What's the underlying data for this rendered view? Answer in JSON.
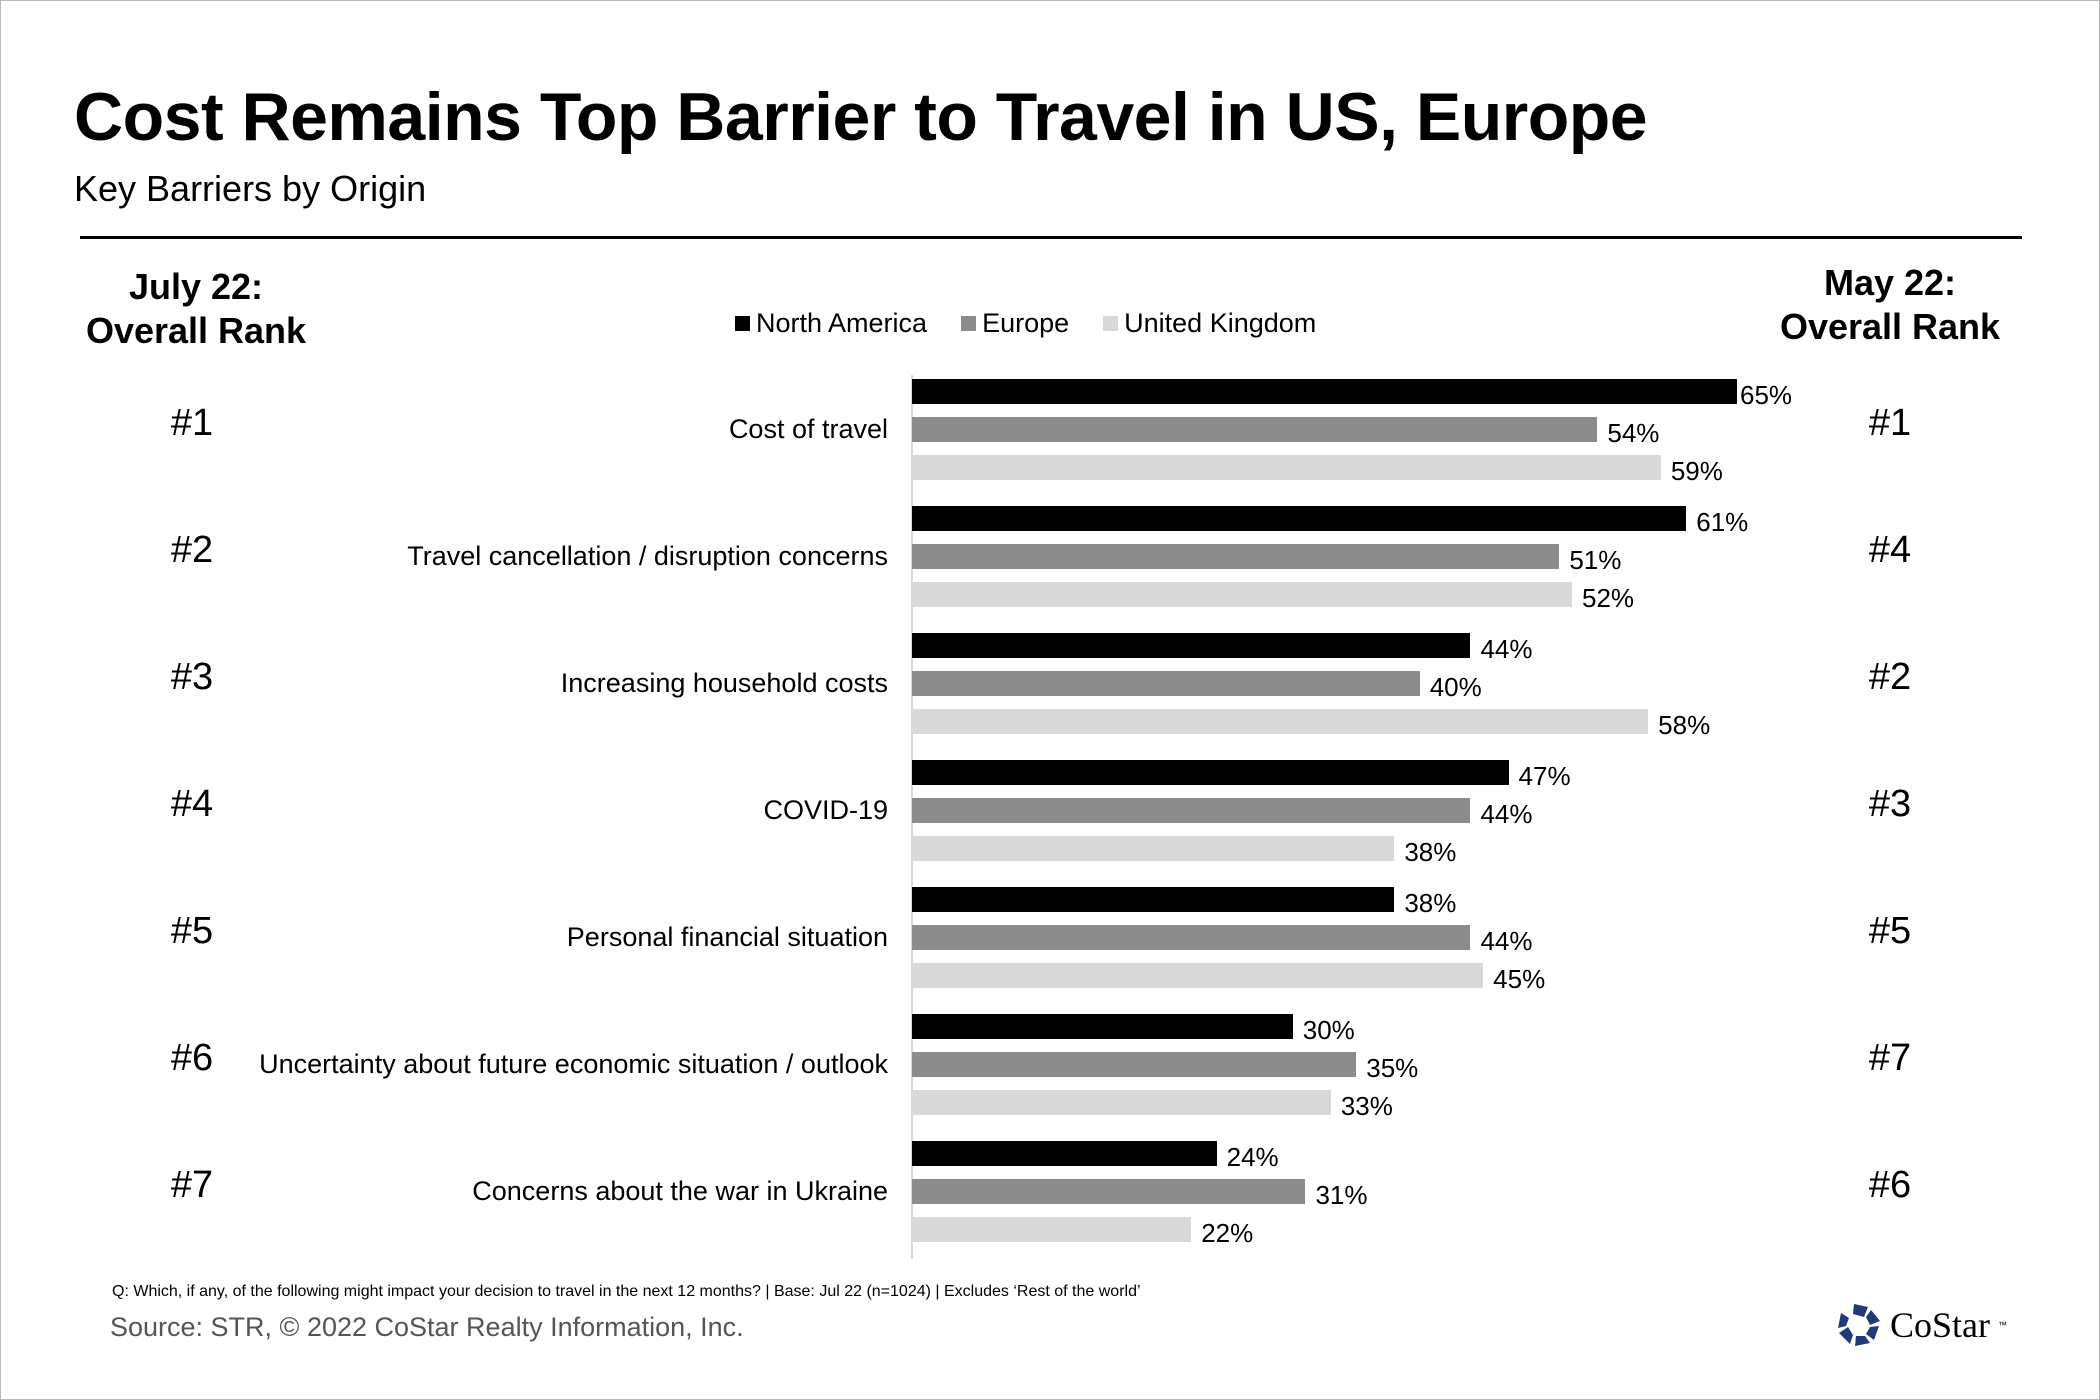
{
  "title": "Cost Remains Top Barrier to Travel in US, Europe",
  "subtitle": "Key Barriers by Origin",
  "left_header": {
    "line1": "July 22:",
    "line2": "Overall Rank"
  },
  "right_header": {
    "line1": "May 22:",
    "line2": "Overall Rank"
  },
  "footnote": "Q: Which, if any, of the following might impact your decision to travel in the next 12 months? | Base: Jul 22 (n=1024) | Excludes ‘Rest of the world’",
  "source": "Source: STR, © 2022  CoStar Realty Information, Inc.",
  "logo": {
    "text": "CoStar",
    "tm": "™",
    "color": "#1f3a7a"
  },
  "chart_data": {
    "type": "bar",
    "orientation": "horizontal",
    "title": "Key Barriers by Origin",
    "legend_position": "top",
    "xlim": [
      0,
      65
    ],
    "categories": [
      "Cost of travel",
      "Travel cancellation / disruption concerns",
      "Increasing household costs",
      "COVID-19",
      "Personal financial situation",
      "Uncertainty about future economic situation / outlook",
      "Concerns about the war in Ukraine"
    ],
    "july_rank": [
      "#1",
      "#2",
      "#3",
      "#4",
      "#5",
      "#6",
      "#7"
    ],
    "may_rank": [
      "#1",
      "#4",
      "#2",
      "#3",
      "#5",
      "#7",
      "#6"
    ],
    "series": [
      {
        "name": "North America",
        "color": "#000000",
        "values": [
          65,
          61,
          44,
          47,
          38,
          30,
          24
        ]
      },
      {
        "name": "Europe",
        "color": "#8c8c8c",
        "values": [
          54,
          51,
          40,
          44,
          44,
          35,
          31
        ]
      },
      {
        "name": "United Kingdom",
        "color": "#d9d9d9",
        "values": [
          59,
          52,
          58,
          38,
          45,
          33,
          22
        ]
      }
    ]
  }
}
